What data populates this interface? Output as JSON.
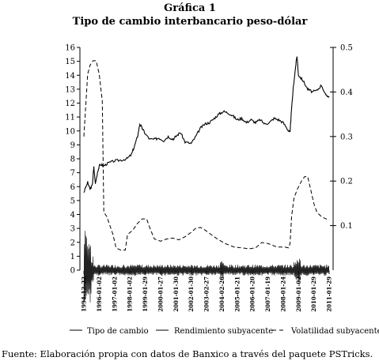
{
  "chart_data": {
    "type": "line",
    "title": "Gráfica 1",
    "subtitle": "Tipo de cambio interbancario peso-dólar",
    "y_left": {
      "min": 0,
      "max": 16,
      "ticks": [
        "0",
        "1",
        "2",
        "3",
        "4",
        "5",
        "6",
        "7",
        "8",
        "9",
        "10",
        "11",
        "12",
        "13",
        "14",
        "15",
        "16"
      ]
    },
    "y_right": {
      "min": 0,
      "max": 0.5,
      "ticks": [
        "0.1",
        "0.2",
        "0.3",
        "0.4",
        "0.5"
      ]
    },
    "x_ticks": [
      "1994-12-22",
      "1996-01-02",
      "1997-01-02",
      "1998-01-02",
      "1999-01-29",
      "2000-01-27",
      "2001-01-30",
      "2002-01-30",
      "2003-02-27",
      "2004-02-26",
      "2005-01-21",
      "2006-01-20",
      "2007-01-19",
      "2008-01-24",
      "2009-01-02",
      "2010-01-29",
      "2011-01-29"
    ],
    "series": [
      {
        "name": "Tipo de cambio",
        "axis": "left",
        "style": "solid",
        "points": [
          [
            0,
            5.6
          ],
          [
            0.25,
            6.3
          ],
          [
            0.4,
            5.8
          ],
          [
            0.55,
            6.1
          ],
          [
            0.65,
            7.4
          ],
          [
            0.75,
            6.2
          ],
          [
            0.9,
            7.1
          ],
          [
            1.05,
            7.6
          ],
          [
            1.3,
            7.5
          ],
          [
            1.6,
            7.7
          ],
          [
            2.0,
            7.85
          ],
          [
            2.4,
            7.9
          ],
          [
            2.8,
            8.0
          ],
          [
            3.1,
            8.3
          ],
          [
            3.3,
            8.9
          ],
          [
            3.5,
            9.6
          ],
          [
            3.65,
            10.5
          ],
          [
            3.8,
            10.2
          ],
          [
            4.0,
            9.8
          ],
          [
            4.3,
            9.4
          ],
          [
            4.6,
            9.4
          ],
          [
            4.9,
            9.5
          ],
          [
            5.2,
            9.3
          ],
          [
            5.5,
            9.6
          ],
          [
            5.8,
            9.4
          ],
          [
            6.0,
            9.6
          ],
          [
            6.3,
            9.9
          ],
          [
            6.6,
            9.2
          ],
          [
            7.0,
            9.1
          ],
          [
            7.3,
            9.6
          ],
          [
            7.6,
            10.2
          ],
          [
            7.9,
            10.5
          ],
          [
            8.2,
            10.6
          ],
          [
            8.5,
            10.9
          ],
          [
            8.8,
            11.2
          ],
          [
            9.1,
            11.4
          ],
          [
            9.4,
            11.3
          ],
          [
            9.7,
            11.1
          ],
          [
            10.0,
            10.8
          ],
          [
            10.3,
            10.9
          ],
          [
            10.6,
            10.6
          ],
          [
            10.9,
            10.8
          ],
          [
            11.2,
            10.6
          ],
          [
            11.5,
            10.8
          ],
          [
            11.8,
            10.5
          ],
          [
            12.1,
            10.6
          ],
          [
            12.4,
            10.9
          ],
          [
            12.7,
            10.8
          ],
          [
            13.0,
            10.6
          ],
          [
            13.3,
            10.1
          ],
          [
            13.45,
            9.9
          ],
          [
            13.5,
            10.8
          ],
          [
            13.65,
            13.0
          ],
          [
            13.8,
            14.5
          ],
          [
            13.9,
            15.4
          ],
          [
            14.0,
            14.0
          ],
          [
            14.3,
            13.6
          ],
          [
            14.6,
            13.0
          ],
          [
            14.9,
            12.8
          ],
          [
            15.2,
            12.9
          ],
          [
            15.5,
            13.3
          ],
          [
            15.8,
            12.5
          ],
          [
            16.0,
            12.5
          ]
        ]
      },
      {
        "name": "Rendimiento subyacente",
        "axis": "left",
        "style": "solid-noise",
        "baseline": 0,
        "spikes": [
          [
            0.1,
            3.0
          ],
          [
            0.2,
            -1.6
          ],
          [
            0.35,
            2.4
          ],
          [
            0.5,
            -1.0
          ],
          [
            2.6,
            0.3
          ],
          [
            3.6,
            0.4
          ],
          [
            6.8,
            0.3
          ],
          [
            9.0,
            0.7
          ],
          [
            13.8,
            0.7
          ],
          [
            14.0,
            -0.9
          ]
        ]
      },
      {
        "name": "Volatilidad subyacente",
        "axis": "right",
        "style": "dashed",
        "points": [
          [
            0,
            0.3
          ],
          [
            0.25,
            0.44
          ],
          [
            0.4,
            0.46
          ],
          [
            0.6,
            0.47
          ],
          [
            0.8,
            0.47
          ],
          [
            1.0,
            0.44
          ],
          [
            1.1,
            0.41
          ],
          [
            1.2,
            0.38
          ],
          [
            1.3,
            0.13
          ],
          [
            1.5,
            0.12
          ],
          [
            1.6,
            0.11
          ],
          [
            1.7,
            0.1
          ],
          [
            1.9,
            0.08
          ],
          [
            2.1,
            0.05
          ],
          [
            2.4,
            0.045
          ],
          [
            2.7,
            0.045
          ],
          [
            2.85,
            0.08
          ],
          [
            3.2,
            0.09
          ],
          [
            3.5,
            0.105
          ],
          [
            3.8,
            0.115
          ],
          [
            4.1,
            0.115
          ],
          [
            4.3,
            0.095
          ],
          [
            4.6,
            0.07
          ],
          [
            5.0,
            0.065
          ],
          [
            5.4,
            0.07
          ],
          [
            5.8,
            0.072
          ],
          [
            6.2,
            0.068
          ],
          [
            6.6,
            0.075
          ],
          [
            7.0,
            0.085
          ],
          [
            7.3,
            0.094
          ],
          [
            7.6,
            0.096
          ],
          [
            7.9,
            0.09
          ],
          [
            8.3,
            0.08
          ],
          [
            8.7,
            0.07
          ],
          [
            9.2,
            0.06
          ],
          [
            9.8,
            0.052
          ],
          [
            10.3,
            0.05
          ],
          [
            10.8,
            0.048
          ],
          [
            11.2,
            0.05
          ],
          [
            11.6,
            0.062
          ],
          [
            12.0,
            0.06
          ],
          [
            12.6,
            0.052
          ],
          [
            13.1,
            0.052
          ],
          [
            13.35,
            0.05
          ],
          [
            13.45,
            0.06
          ],
          [
            13.55,
            0.12
          ],
          [
            13.7,
            0.16
          ],
          [
            13.9,
            0.18
          ],
          [
            14.2,
            0.2
          ],
          [
            14.4,
            0.21
          ],
          [
            14.6,
            0.21
          ],
          [
            14.8,
            0.18
          ],
          [
            15.0,
            0.15
          ],
          [
            15.2,
            0.13
          ],
          [
            15.5,
            0.12
          ],
          [
            15.8,
            0.115
          ],
          [
            16.0,
            0.112
          ]
        ]
      }
    ],
    "legend": {
      "position": "bottom",
      "entries": [
        "Tipo de cambio",
        "Rendimiento subyacente",
        "Volatilidad subyacente"
      ]
    },
    "source": "Fuente: Elaboración propia con datos de Banxico a través del paquete PSTricks."
  }
}
